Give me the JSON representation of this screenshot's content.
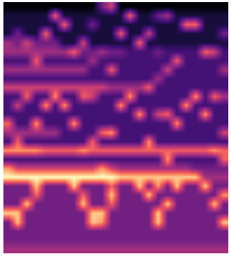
{
  "chart_data": {
    "type": "heatmap",
    "color": "magma",
    "zlim": [
      0,
      9
    ],
    "tick_labels": false,
    "grid": false,
    "cells": [
      [
        0,
        0,
        0,
        0,
        0,
        0,
        0,
        0,
        0,
        0,
        3,
        5,
        0,
        0,
        0,
        0,
        0,
        0,
        0,
        0,
        0,
        0,
        0,
        0
      ],
      [
        1,
        1,
        1,
        1,
        1,
        6,
        1,
        1,
        1,
        1,
        1,
        1,
        1,
        6,
        1,
        1,
        3,
        4,
        1,
        1,
        1,
        1,
        1,
        1
      ],
      [
        1,
        1,
        1,
        1,
        1,
        1,
        6,
        1,
        1,
        3,
        1,
        1,
        1,
        1,
        1,
        1,
        1,
        1,
        1,
        6,
        6,
        1,
        1,
        1
      ],
      [
        1,
        3,
        1,
        1,
        6,
        1,
        1,
        1,
        1,
        1,
        1,
        1,
        6,
        1,
        1,
        5,
        1,
        1,
        1,
        1,
        1,
        1,
        1,
        3
      ],
      [
        4,
        3,
        5,
        3,
        3,
        3,
        1,
        1,
        5,
        1,
        1,
        1,
        1,
        1,
        6,
        1,
        1,
        1,
        1,
        1,
        1,
        1,
        1,
        1
      ],
      [
        4,
        4,
        4,
        4,
        4,
        4,
        4,
        6,
        3,
        3,
        4,
        3,
        3,
        2,
        2,
        2,
        3,
        2,
        2,
        2,
        2,
        6,
        5,
        2
      ],
      [
        2,
        2,
        2,
        6,
        2,
        2,
        2,
        2,
        2,
        4,
        2,
        2,
        2,
        2,
        2,
        2,
        2,
        2,
        6,
        2,
        2,
        2,
        2,
        2
      ],
      [
        4,
        4,
        4,
        4,
        4,
        4,
        4,
        4,
        4,
        2,
        2,
        6,
        2,
        2,
        2,
        2,
        2,
        5,
        2,
        2,
        2,
        2,
        2,
        4
      ],
      [
        2,
        2,
        2,
        2,
        2,
        2,
        2,
        2,
        2,
        2,
        2,
        2,
        2,
        2,
        2,
        2,
        4,
        2,
        2,
        2,
        2,
        2,
        2,
        2
      ],
      [
        5,
        5,
        5,
        5,
        5,
        5,
        5,
        5,
        5,
        5,
        5,
        4,
        4,
        4,
        4,
        6,
        2,
        2,
        2,
        2,
        2,
        2,
        2,
        2
      ],
      [
        2,
        2,
        6,
        2,
        2,
        7,
        2,
        2,
        6,
        5,
        2,
        2,
        2,
        7,
        2,
        2,
        2,
        2,
        2,
        2,
        7,
        2,
        6,
        4
      ],
      [
        2,
        5,
        2,
        2,
        7,
        2,
        7,
        2,
        2,
        2,
        2,
        2,
        7,
        2,
        2,
        2,
        2,
        2,
        2,
        7,
        2,
        2,
        2,
        2
      ],
      [
        2,
        2,
        2,
        2,
        2,
        2,
        2,
        2,
        2,
        2,
        2,
        2,
        2,
        2,
        7,
        2,
        5,
        6,
        2,
        2,
        2,
        7,
        2,
        2
      ],
      [
        6,
        2,
        2,
        7,
        2,
        2,
        2,
        7,
        2,
        2,
        2,
        2,
        2,
        2,
        2,
        2,
        2,
        2,
        7,
        2,
        2,
        2,
        2,
        2
      ],
      [
        4,
        4,
        4,
        4,
        4,
        4,
        2,
        2,
        2,
        2,
        6,
        7,
        2,
        2,
        2,
        2,
        2,
        2,
        2,
        2,
        2,
        2,
        2,
        5
      ],
      [
        2,
        6,
        2,
        2,
        2,
        2,
        2,
        2,
        2,
        6,
        2,
        2,
        2,
        2,
        2,
        7,
        2,
        2,
        2,
        2,
        2,
        2,
        2,
        2
      ],
      [
        7,
        7,
        7,
        7,
        6,
        6,
        6,
        6,
        7,
        6,
        6,
        6,
        6,
        6,
        6,
        6,
        6,
        6,
        6,
        6,
        6,
        6,
        7,
        6
      ],
      [
        2,
        2,
        2,
        2,
        2,
        2,
        2,
        2,
        2,
        2,
        2,
        2,
        2,
        2,
        2,
        2,
        2,
        7,
        2,
        2,
        2,
        2,
        2,
        6
      ],
      [
        7,
        5,
        5,
        5,
        5,
        5,
        5,
        5,
        5,
        5,
        7,
        5,
        4,
        4,
        4,
        4,
        4,
        4,
        4,
        4,
        3,
        3,
        3,
        3
      ],
      [
        9,
        9,
        9,
        9,
        9,
        9,
        9,
        9,
        9,
        9,
        9,
        9,
        8,
        8,
        8,
        8,
        8,
        8,
        8,
        8,
        8,
        4,
        4,
        4
      ],
      [
        3,
        3,
        3,
        8,
        3,
        3,
        3,
        8,
        3,
        3,
        3,
        6,
        3,
        3,
        8,
        3,
        7,
        3,
        8,
        3,
        3,
        8,
        3,
        3
      ],
      [
        3,
        3,
        3,
        6,
        3,
        3,
        3,
        3,
        6,
        3,
        3,
        8,
        3,
        3,
        3,
        8,
        3,
        3,
        3,
        3,
        3,
        3,
        3,
        7
      ],
      [
        3,
        3,
        8,
        3,
        3,
        3,
        3,
        3,
        8,
        3,
        3,
        6,
        3,
        3,
        3,
        3,
        3,
        8,
        3,
        3,
        3,
        3,
        8,
        3
      ],
      [
        8,
        8,
        3,
        3,
        3,
        3,
        3,
        3,
        3,
        8,
        8,
        3,
        3,
        3,
        3,
        3,
        8,
        3,
        3,
        3,
        3,
        3,
        3,
        3
      ],
      [
        3,
        8,
        3,
        3,
        3,
        3,
        3,
        3,
        3,
        8,
        7,
        3,
        3,
        3,
        3,
        3,
        8,
        3,
        3,
        3,
        3,
        3,
        3,
        8
      ],
      [
        3,
        3,
        3,
        3,
        3,
        3,
        3,
        3,
        3,
        3,
        3,
        3,
        3,
        3,
        3,
        3,
        3,
        3,
        3,
        3,
        3,
        3,
        3,
        3
      ],
      [
        3,
        3,
        3,
        3,
        3,
        3,
        3,
        3,
        3,
        3,
        3,
        3,
        3,
        3,
        3,
        3,
        3,
        3,
        3,
        3,
        3,
        3,
        3,
        3
      ],
      [
        4,
        4,
        4,
        4,
        4,
        4,
        4,
        4,
        4,
        4,
        4,
        4,
        4,
        4,
        4,
        4,
        4,
        4,
        4,
        4,
        4,
        4,
        4,
        4
      ]
    ]
  }
}
